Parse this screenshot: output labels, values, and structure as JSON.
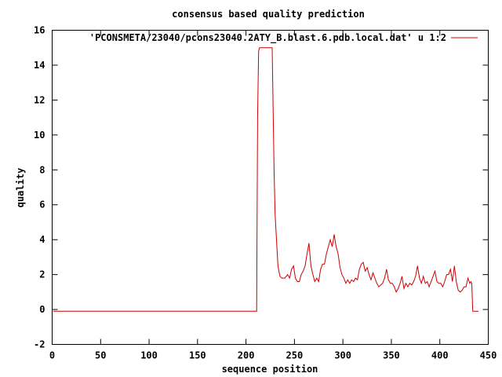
{
  "chart_data": {
    "type": "line",
    "title": "consensus based quality prediction",
    "xlabel": "sequence position",
    "ylabel": "quality",
    "xlim": [
      0,
      450
    ],
    "ylim": [
      -2,
      16
    ],
    "xticks": [
      0,
      50,
      100,
      150,
      200,
      250,
      300,
      350,
      400,
      450
    ],
    "yticks": [
      -2,
      0,
      2,
      4,
      6,
      8,
      10,
      12,
      14,
      16
    ],
    "grid": false,
    "legend_position": "top-right",
    "line_color": "#cc0000",
    "series": [
      {
        "name": "'PCONSMETA/23040/pcons23040.2ATY_B.blast.6.pdb.local.dat' u 1:2",
        "points": [
          [
            1,
            -0.1
          ],
          [
            100,
            -0.1
          ],
          [
            211,
            -0.1
          ],
          [
            212,
            11
          ],
          [
            213,
            14.8
          ],
          [
            214,
            15
          ],
          [
            226,
            15
          ],
          [
            227,
            15
          ],
          [
            228,
            11.5
          ],
          [
            229,
            8
          ],
          [
            230,
            5.5
          ],
          [
            231,
            4.5
          ],
          [
            232,
            3.5
          ],
          [
            233,
            2.5
          ],
          [
            234,
            2.2
          ],
          [
            235,
            1.9
          ],
          [
            237,
            1.8
          ],
          [
            240,
            1.8
          ],
          [
            243,
            2.0
          ],
          [
            245,
            1.8
          ],
          [
            247,
            2.3
          ],
          [
            249,
            2.5
          ],
          [
            251,
            1.8
          ],
          [
            253,
            1.6
          ],
          [
            255,
            1.6
          ],
          [
            257,
            2.0
          ],
          [
            259,
            2.2
          ],
          [
            261,
            2.5
          ],
          [
            263,
            3.2
          ],
          [
            265,
            3.8
          ],
          [
            267,
            2.5
          ],
          [
            269,
            2.0
          ],
          [
            271,
            1.6
          ],
          [
            273,
            1.8
          ],
          [
            275,
            1.6
          ],
          [
            277,
            2.3
          ],
          [
            279,
            2.6
          ],
          [
            281,
            2.6
          ],
          [
            283,
            3.2
          ],
          [
            285,
            3.6
          ],
          [
            287,
            4.0
          ],
          [
            289,
            3.6
          ],
          [
            291,
            4.3
          ],
          [
            293,
            3.6
          ],
          [
            295,
            3.2
          ],
          [
            297,
            2.4
          ],
          [
            299,
            2.0
          ],
          [
            301,
            1.8
          ],
          [
            303,
            1.5
          ],
          [
            305,
            1.7
          ],
          [
            307,
            1.5
          ],
          [
            309,
            1.7
          ],
          [
            311,
            1.6
          ],
          [
            313,
            1.8
          ],
          [
            315,
            1.7
          ],
          [
            317,
            2.3
          ],
          [
            319,
            2.6
          ],
          [
            321,
            2.7
          ],
          [
            323,
            2.2
          ],
          [
            325,
            2.4
          ],
          [
            327,
            2.0
          ],
          [
            329,
            1.7
          ],
          [
            331,
            2.1
          ],
          [
            333,
            1.8
          ],
          [
            335,
            1.5
          ],
          [
            337,
            1.3
          ],
          [
            339,
            1.4
          ],
          [
            341,
            1.5
          ],
          [
            343,
            1.8
          ],
          [
            345,
            2.3
          ],
          [
            347,
            1.7
          ],
          [
            349,
            1.5
          ],
          [
            351,
            1.5
          ],
          [
            353,
            1.3
          ],
          [
            355,
            1.0
          ],
          [
            357,
            1.2
          ],
          [
            359,
            1.5
          ],
          [
            361,
            1.9
          ],
          [
            363,
            1.2
          ],
          [
            365,
            1.5
          ],
          [
            367,
            1.3
          ],
          [
            369,
            1.5
          ],
          [
            371,
            1.4
          ],
          [
            373,
            1.6
          ],
          [
            375,
            1.9
          ],
          [
            377,
            2.5
          ],
          [
            379,
            1.8
          ],
          [
            381,
            1.5
          ],
          [
            383,
            1.9
          ],
          [
            385,
            1.5
          ],
          [
            387,
            1.6
          ],
          [
            389,
            1.3
          ],
          [
            391,
            1.6
          ],
          [
            393,
            1.9
          ],
          [
            395,
            2.2
          ],
          [
            397,
            1.6
          ],
          [
            399,
            1.5
          ],
          [
            401,
            1.5
          ],
          [
            403,
            1.3
          ],
          [
            405,
            1.6
          ],
          [
            407,
            2.0
          ],
          [
            409,
            2.0
          ],
          [
            411,
            2.3
          ],
          [
            413,
            1.6
          ],
          [
            415,
            2.5
          ],
          [
            417,
            1.6
          ],
          [
            419,
            1.1
          ],
          [
            421,
            1.0
          ],
          [
            423,
            1.1
          ],
          [
            425,
            1.3
          ],
          [
            427,
            1.3
          ],
          [
            429,
            1.8
          ],
          [
            431,
            1.5
          ],
          [
            432,
            1.6
          ],
          [
            433,
            1.5
          ],
          [
            434,
            -0.1
          ],
          [
            440,
            -0.1
          ]
        ]
      }
    ]
  }
}
